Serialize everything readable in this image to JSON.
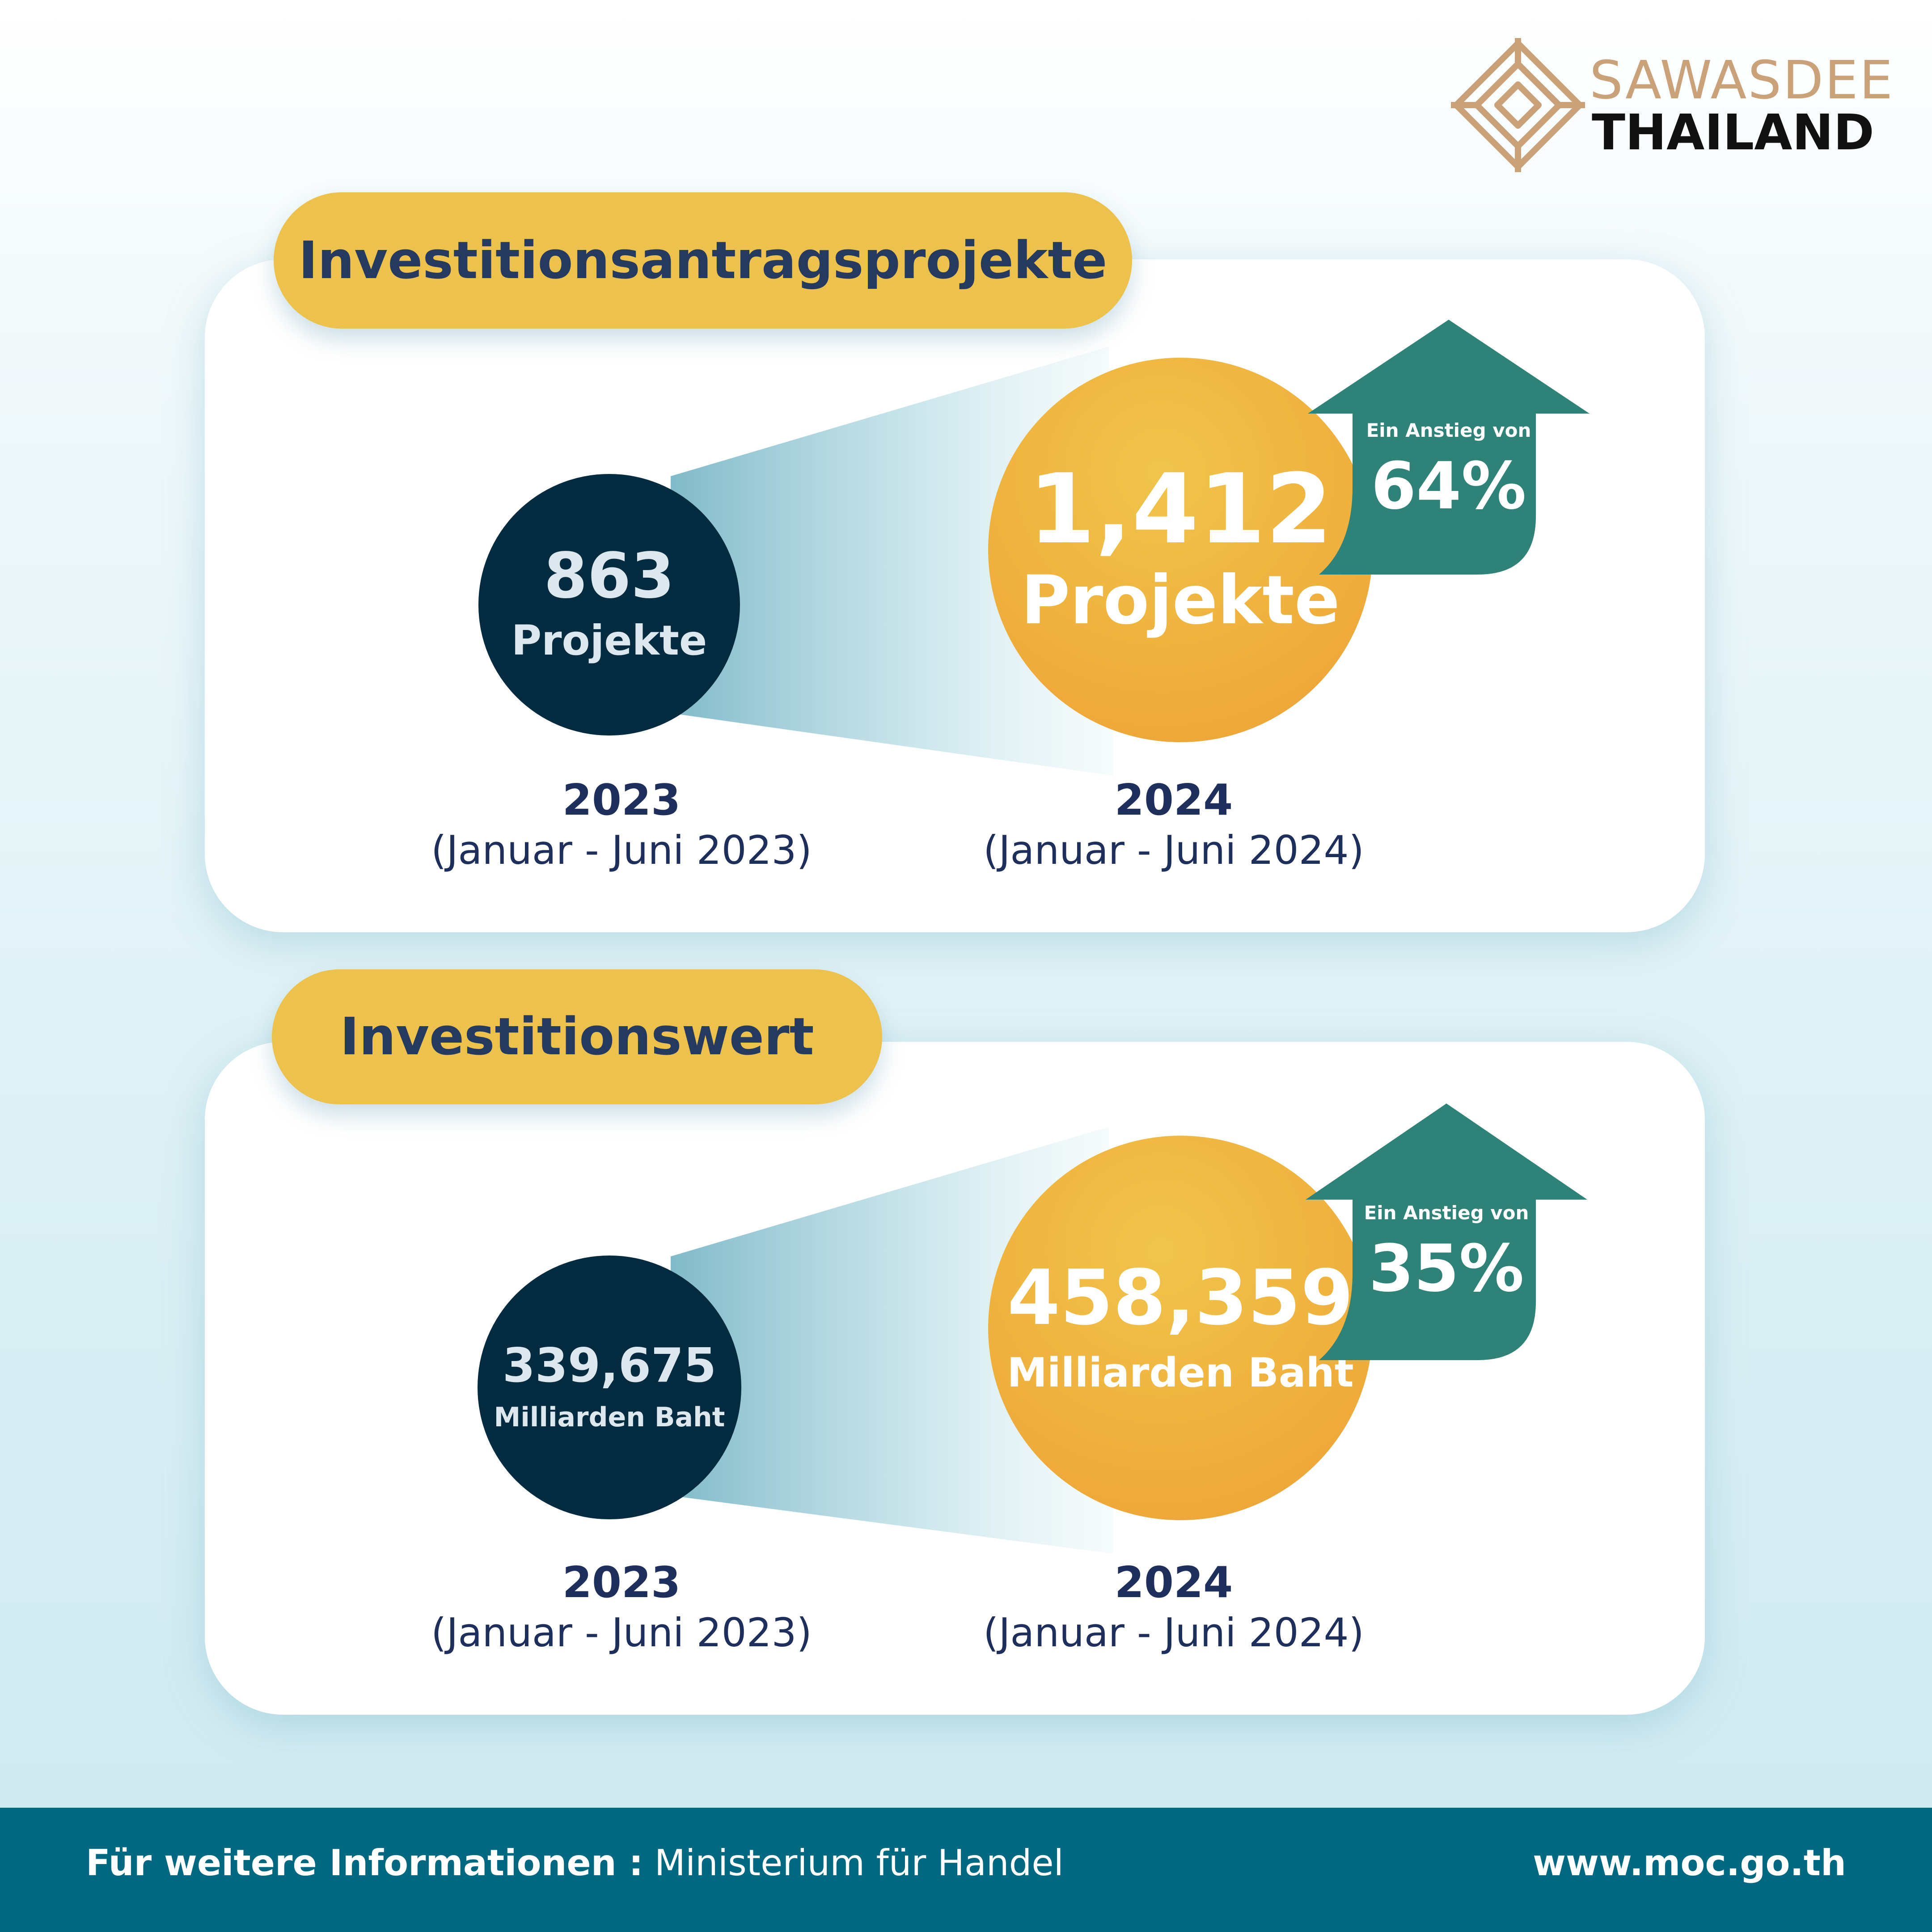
{
  "brand": {
    "line1": "SAWASDEE",
    "line2": "THAILAND",
    "logo_icon": "diamond-knot-logo",
    "colors": {
      "gold": "#c9a27a",
      "dark": "#111111"
    }
  },
  "sections": [
    {
      "title": "Investitionsantragsprojekte",
      "left": {
        "value": "863",
        "unit": "Projekte",
        "year": "2023",
        "period": "(Januar - Juni 2023)"
      },
      "right": {
        "value": "1,412",
        "unit": "Projekte",
        "year": "2024",
        "period": "(Januar - Juni 2024)"
      },
      "increase": {
        "label": "Ein Anstieg von",
        "value": "64%"
      }
    },
    {
      "title": "Investitionswert",
      "left": {
        "value": "339,675",
        "unit": "Milliarden Baht",
        "year": "2023",
        "period": "(Januar - Juni 2023)"
      },
      "right": {
        "value": "458,359",
        "unit": "Milliarden Baht",
        "year": "2024",
        "period": "(Januar - Juni 2024)"
      },
      "increase": {
        "label": "Ein Anstieg von",
        "value": "35%"
      }
    }
  ],
  "footer": {
    "label": "Für weitere Informationen :",
    "source": "Ministerium für Handel",
    "url": "www.moc.go.th"
  },
  "colors": {
    "pill": "#ecc24d",
    "dark_circle": "#052b40",
    "gold_circle": "#efb13d",
    "arrow": "#2e8277",
    "footer": "#006881",
    "text_navy": "#1e2f5c"
  }
}
